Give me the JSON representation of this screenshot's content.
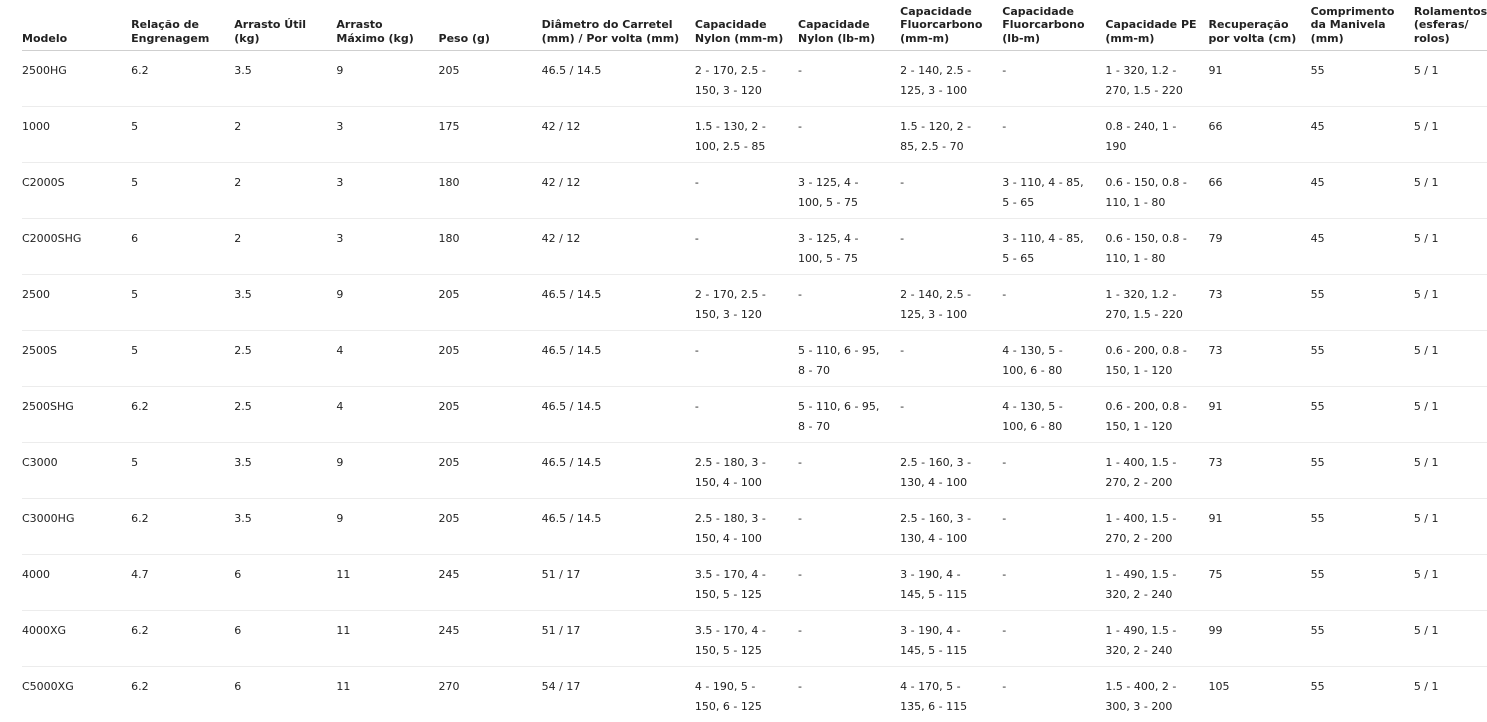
{
  "table": {
    "headers": [
      "Modelo",
      "Relação de Engrenagem",
      "Arrasto Útil (kg)",
      "Arrasto Máximo (kg)",
      "Peso (g)",
      "Diâmetro do Carretel (mm) / Por volta (mm)",
      "Capacidade Nylon (mm-m)",
      "Capacidade Nylon (lb-m)",
      "Capacidade Fluorcarbono (mm-m)",
      "Capacidade Fluorcarbono (lb-m)",
      "Capacidade PE (mm-m)",
      "Recuperação por volta (cm)",
      "Comprimento da Manivela (mm)",
      "Rolamentos (esferas/ rolos)"
    ],
    "rows": [
      [
        "2500HG",
        "6.2",
        "3.5",
        "9",
        "205",
        "46.5 / 14.5",
        "2 - 170, 2.5 - 150, 3 - 120",
        "-",
        "2 - 140, 2.5 - 125, 3 - 100",
        "-",
        "1 - 320, 1.2 - 270, 1.5 - 220",
        "91",
        "55",
        "5 / 1"
      ],
      [
        "1000",
        "5",
        "2",
        "3",
        "175",
        "42 / 12",
        "1.5 - 130, 2 - 100, 2.5 - 85",
        "-",
        "1.5 - 120, 2 - 85, 2.5 - 70",
        "-",
        "0.8 - 240, 1 - 190",
        "66",
        "45",
        "5 / 1"
      ],
      [
        "C2000S",
        "5",
        "2",
        "3",
        "180",
        "42 / 12",
        "-",
        "3 - 125, 4 - 100, 5 - 75",
        "-",
        "3 - 110, 4 - 85, 5 - 65",
        "0.6 - 150, 0.8 - 110, 1 - 80",
        "66",
        "45",
        "5 / 1"
      ],
      [
        "C2000SHG",
        "6",
        "2",
        "3",
        "180",
        "42 / 12",
        "-",
        "3 - 125, 4 - 100, 5 - 75",
        "-",
        "3 - 110, 4 - 85, 5 - 65",
        "0.6 - 150, 0.8 - 110, 1 - 80",
        "79",
        "45",
        "5 / 1"
      ],
      [
        "2500",
        "5",
        "3.5",
        "9",
        "205",
        "46.5 / 14.5",
        "2 - 170, 2.5 - 150, 3 - 120",
        "-",
        "2 - 140, 2.5 - 125, 3 - 100",
        "-",
        "1 - 320, 1.2 - 270, 1.5 - 220",
        "73",
        "55",
        "5 / 1"
      ],
      [
        "2500S",
        "5",
        "2.5",
        "4",
        "205",
        "46.5 / 14.5",
        "-",
        "5 - 110, 6 - 95, 8 - 70",
        "-",
        "4 - 130, 5 - 100, 6 - 80",
        "0.6 - 200, 0.8 - 150, 1 - 120",
        "73",
        "55",
        "5 / 1"
      ],
      [
        "2500SHG",
        "6.2",
        "2.5",
        "4",
        "205",
        "46.5 / 14.5",
        "-",
        "5 - 110, 6 - 95, 8 - 70",
        "-",
        "4 - 130, 5 - 100, 6 - 80",
        "0.6 - 200, 0.8 - 150, 1 - 120",
        "91",
        "55",
        "5 / 1"
      ],
      [
        "C3000",
        "5",
        "3.5",
        "9",
        "205",
        "46.5 / 14.5",
        "2.5 - 180, 3 - 150, 4 - 100",
        "-",
        "2.5 - 160, 3 - 130, 4 - 100",
        "-",
        "1 - 400, 1.5 - 270, 2 - 200",
        "73",
        "55",
        "5 / 1"
      ],
      [
        "C3000HG",
        "6.2",
        "3.5",
        "9",
        "205",
        "46.5 / 14.5",
        "2.5 - 180, 3 - 150, 4 - 100",
        "-",
        "2.5 - 160, 3 - 130, 4 - 100",
        "-",
        "1 - 400, 1.5 - 270, 2 - 200",
        "91",
        "55",
        "5 / 1"
      ],
      [
        "4000",
        "4.7",
        "6",
        "11",
        "245",
        "51 / 17",
        "3.5 - 170, 4 - 150, 5 - 125",
        "-",
        "3 - 190, 4 - 145, 5 - 115",
        "-",
        "1 - 490, 1.5 - 320, 2 - 240",
        "75",
        "55",
        "5 / 1"
      ],
      [
        "4000XG",
        "6.2",
        "6",
        "11",
        "245",
        "51 / 17",
        "3.5 - 170, 4 - 150, 5 - 125",
        "-",
        "3 - 190, 4 - 145, 5 - 115",
        "-",
        "1 - 490, 1.5 - 320, 2 - 240",
        "99",
        "55",
        "5 / 1"
      ],
      [
        "C5000XG",
        "6.2",
        "6",
        "11",
        "270",
        "54 / 17",
        "4 - 190, 5 - 150, 6 - 125",
        "-",
        "4 - 170, 5 - 135, 6 - 115",
        "-",
        "1.5 - 400, 2 - 300, 3 - 200",
        "105",
        "55",
        "5 / 1"
      ]
    ]
  }
}
